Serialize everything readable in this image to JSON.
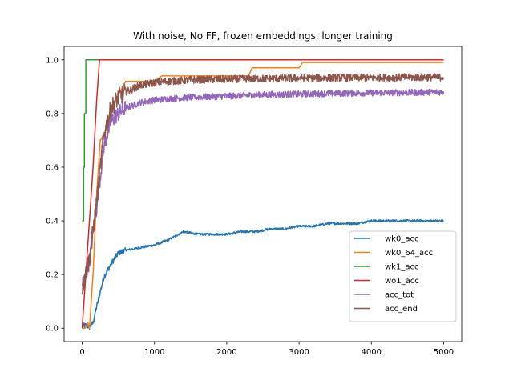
{
  "chart_data": {
    "type": "line",
    "title": "With noise, No FF, frozen embeddings, longer training",
    "xlabel": "",
    "ylabel": "",
    "xlim": [
      -250,
      5250
    ],
    "ylim": [
      -0.05,
      1.05
    ],
    "xticks": [
      0,
      1000,
      2000,
      3000,
      4000,
      5000
    ],
    "yticks": [
      0.0,
      0.2,
      0.4,
      0.6,
      0.8,
      1.0
    ],
    "ytick_labels": [
      "0.0",
      "0.2",
      "0.4",
      "0.6",
      "0.8",
      "1.0"
    ],
    "grid": false,
    "legend_position": "lower-right",
    "series": [
      {
        "name": "wk0_acc",
        "color": "#1f77b4",
        "noise": 0.004,
        "x": [
          0,
          50,
          100,
          150,
          200,
          300,
          400,
          500,
          600,
          800,
          1000,
          1200,
          1400,
          1600,
          1800,
          2000,
          2200,
          2400,
          2600,
          2800,
          3000,
          3200,
          3400,
          3600,
          3800,
          4000,
          4200,
          4400,
          4600,
          4800,
          5000
        ],
        "y": [
          0.01,
          0.01,
          0.005,
          0.02,
          0.08,
          0.19,
          0.24,
          0.28,
          0.29,
          0.3,
          0.31,
          0.33,
          0.36,
          0.35,
          0.35,
          0.35,
          0.36,
          0.36,
          0.37,
          0.37,
          0.38,
          0.38,
          0.39,
          0.39,
          0.39,
          0.4,
          0.4,
          0.4,
          0.4,
          0.4,
          0.4
        ]
      },
      {
        "name": "wk0_64_acc",
        "color": "#ff7f0e",
        "noise": 0.0,
        "x": [
          0,
          40,
          80,
          100,
          150,
          200,
          250,
          300,
          400,
          500,
          600,
          800,
          1000,
          1100,
          1500,
          2000,
          2300,
          2350,
          3000,
          3050,
          5000
        ],
        "y": [
          0.0,
          0.0,
          0.02,
          0.0,
          0.2,
          0.5,
          0.7,
          0.72,
          0.8,
          0.87,
          0.92,
          0.92,
          0.92,
          0.94,
          0.94,
          0.94,
          0.94,
          0.97,
          0.97,
          0.99,
          0.99
        ]
      },
      {
        "name": "wk1_acc",
        "color": "#2ca02c",
        "noise": 0.0,
        "x": [
          0,
          20,
          20,
          30,
          30,
          50,
          50,
          5000
        ],
        "y": [
          0.4,
          0.4,
          0.6,
          0.6,
          0.8,
          0.8,
          1.0,
          1.0
        ]
      },
      {
        "name": "wo1_acc",
        "color": "#d62728",
        "noise": 0.0,
        "x": [
          0,
          50,
          100,
          150,
          200,
          240,
          5000
        ],
        "y": [
          0.0,
          0.2,
          0.4,
          0.6,
          0.85,
          1.0,
          1.0
        ]
      },
      {
        "name": "acc_tot",
        "color": "#9467bd",
        "noise": 0.012,
        "x": [
          0,
          100,
          200,
          300,
          400,
          500,
          600,
          800,
          1000,
          1200,
          1500,
          2000,
          2500,
          3000,
          3500,
          4000,
          4500,
          5000
        ],
        "y": [
          0.15,
          0.25,
          0.45,
          0.68,
          0.77,
          0.8,
          0.82,
          0.84,
          0.85,
          0.855,
          0.86,
          0.865,
          0.87,
          0.872,
          0.875,
          0.877,
          0.878,
          0.88
        ]
      },
      {
        "name": "acc_end",
        "color": "#8c564b",
        "noise": 0.014,
        "x": [
          0,
          100,
          200,
          300,
          400,
          500,
          600,
          800,
          1000,
          1200,
          1500,
          2000,
          2500,
          3000,
          3500,
          4000,
          4500,
          5000
        ],
        "y": [
          0.15,
          0.26,
          0.47,
          0.72,
          0.82,
          0.86,
          0.88,
          0.905,
          0.915,
          0.92,
          0.925,
          0.928,
          0.93,
          0.932,
          0.933,
          0.934,
          0.935,
          0.935
        ]
      }
    ]
  }
}
